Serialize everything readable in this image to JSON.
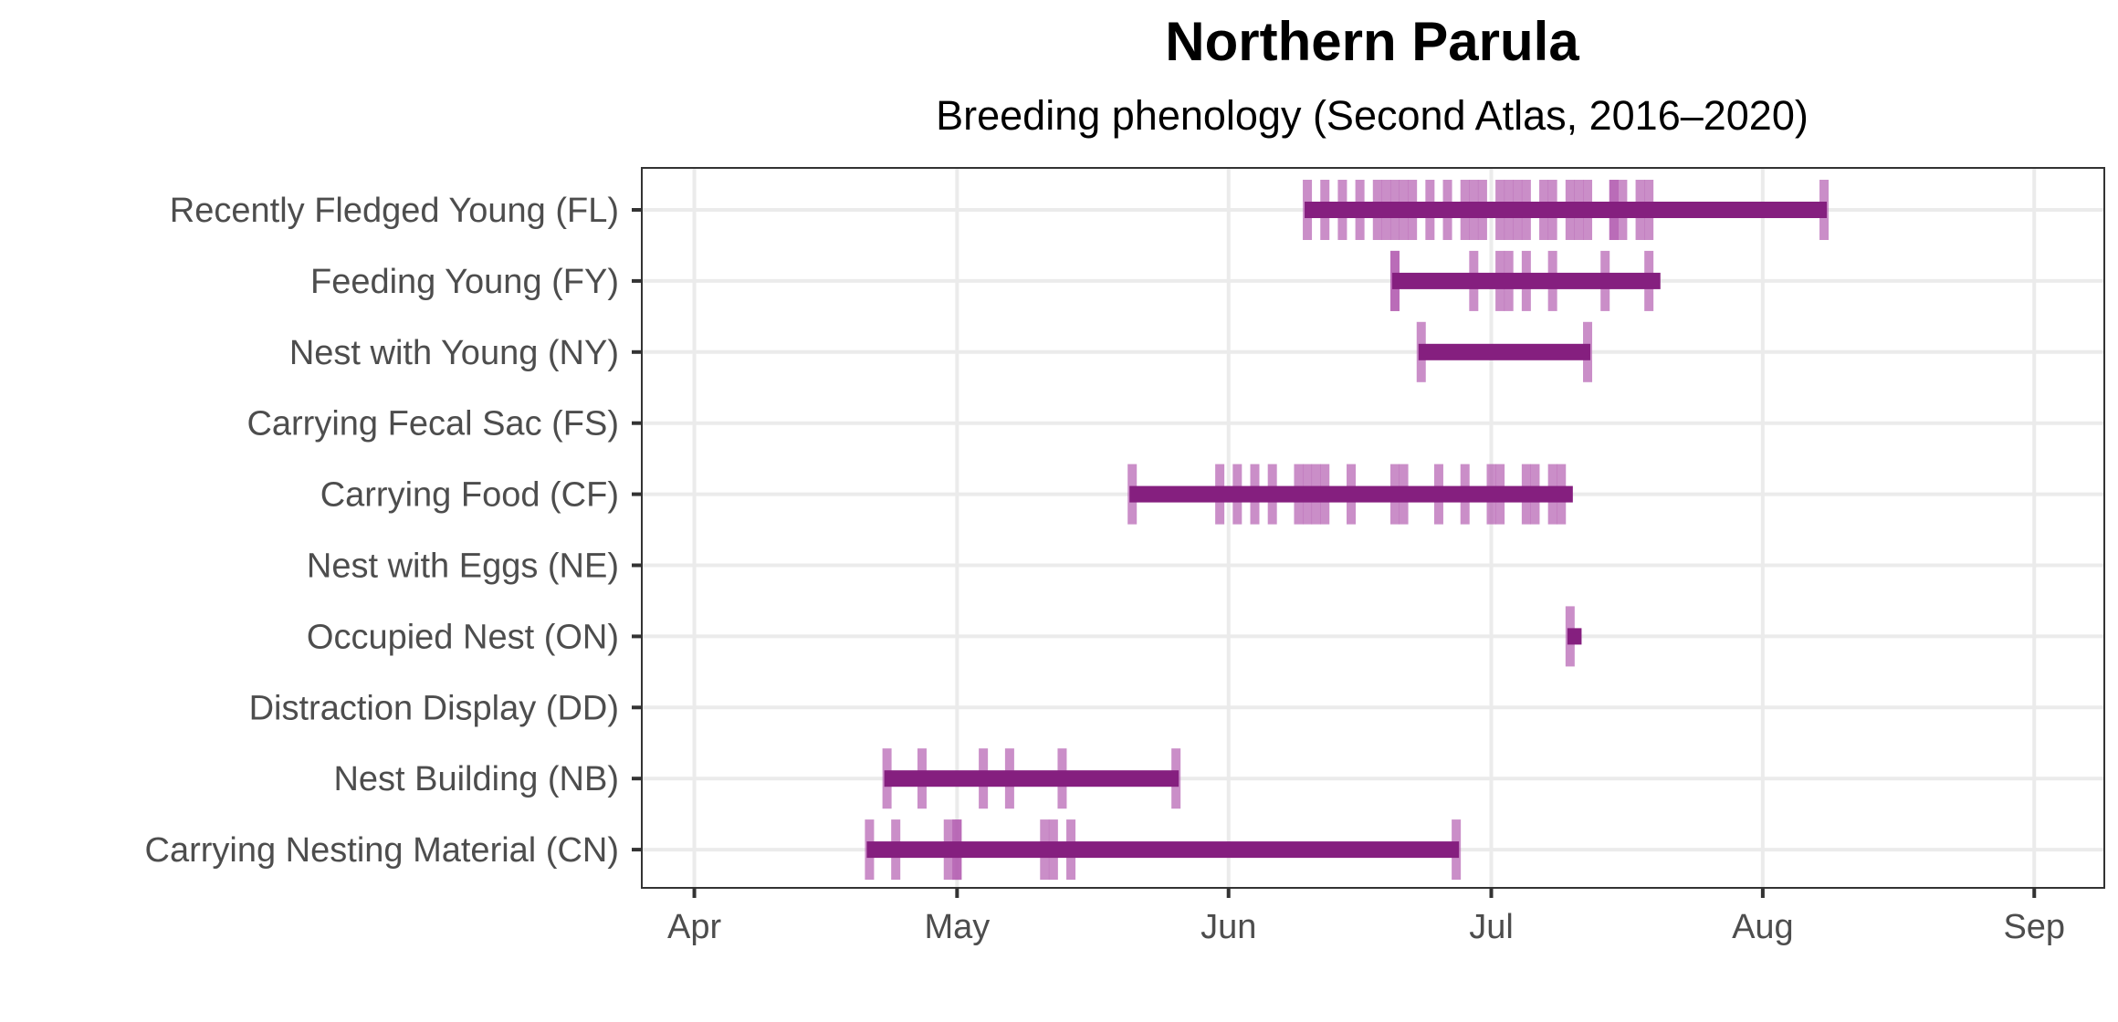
{
  "chart_data": {
    "type": "timeline",
    "title": "Northern Parula",
    "subtitle": "Breeding phenology (Second Atlas, 2016–2020)",
    "xlabel": "",
    "ylabel": "",
    "x_unit": "day of year",
    "xlim": [
      85,
      252
    ],
    "x_ticks": [
      {
        "label": "Apr",
        "day": 91
      },
      {
        "label": "May",
        "day": 121
      },
      {
        "label": "Jun",
        "day": 152
      },
      {
        "label": "Jul",
        "day": 182
      },
      {
        "label": "Aug",
        "day": 213
      },
      {
        "label": "Sep",
        "day": 244
      }
    ],
    "grid": true,
    "colors": {
      "range": "#851f7f",
      "observation": "#b35eb0",
      "grid": "#ebebeb",
      "axis": "#333333"
    },
    "categories": [
      {
        "label": "Recently Fledged Young (FL)",
        "range": [
          161,
          220
        ],
        "observations": [
          161,
          163,
          165,
          167,
          169,
          170,
          171,
          172,
          173,
          175,
          177,
          179,
          180,
          181,
          183,
          184,
          185,
          186,
          188,
          189,
          191,
          192,
          193,
          196,
          196,
          197,
          199,
          200,
          220
        ]
      },
      {
        "label": "Feeding Young (FY)",
        "range": [
          171,
          201
        ],
        "observations": [
          171,
          171,
          180,
          183,
          184,
          186,
          189,
          195,
          200
        ]
      },
      {
        "label": "Nest with Young (NY)",
        "range": [
          174,
          193
        ],
        "observations": [
          174,
          193
        ]
      },
      {
        "label": "Carrying Fecal Sac (FS)",
        "range": null,
        "observations": []
      },
      {
        "label": "Carrying Food (CF)",
        "range": [
          141,
          191
        ],
        "observations": [
          141,
          151,
          153,
          155,
          157,
          160,
          161,
          162,
          163,
          166,
          171,
          172,
          176,
          179,
          182,
          183,
          186,
          187,
          189,
          190
        ]
      },
      {
        "label": "Nest with Eggs (NE)",
        "range": null,
        "observations": []
      },
      {
        "label": "Occupied Nest (ON)",
        "range": [
          191,
          192
        ],
        "observations": [
          191
        ]
      },
      {
        "label": "Distraction Display (DD)",
        "range": null,
        "observations": []
      },
      {
        "label": "Nest Building (NB)",
        "range": [
          113,
          146
        ],
        "observations": [
          113,
          117,
          124,
          127,
          133,
          146
        ]
      },
      {
        "label": "Carrying Nesting Material (CN)",
        "range": [
          111,
          178
        ],
        "observations": [
          111,
          114,
          120,
          121,
          121,
          131,
          132,
          134,
          178
        ]
      }
    ]
  }
}
